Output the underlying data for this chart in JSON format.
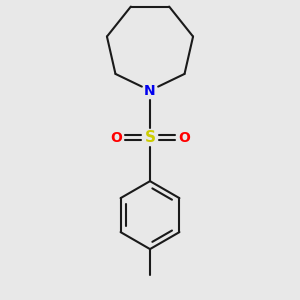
{
  "background_color": "#e8e8e8",
  "bond_color": "#1a1a1a",
  "bond_width": 1.5,
  "N_color": "#0000ee",
  "S_color": "#cccc00",
  "O_color": "#ff0000",
  "fig_width": 3.0,
  "fig_height": 3.0,
  "dpi": 100,
  "xlim": [
    -1.8,
    1.8
  ],
  "ylim": [
    -2.6,
    2.6
  ]
}
